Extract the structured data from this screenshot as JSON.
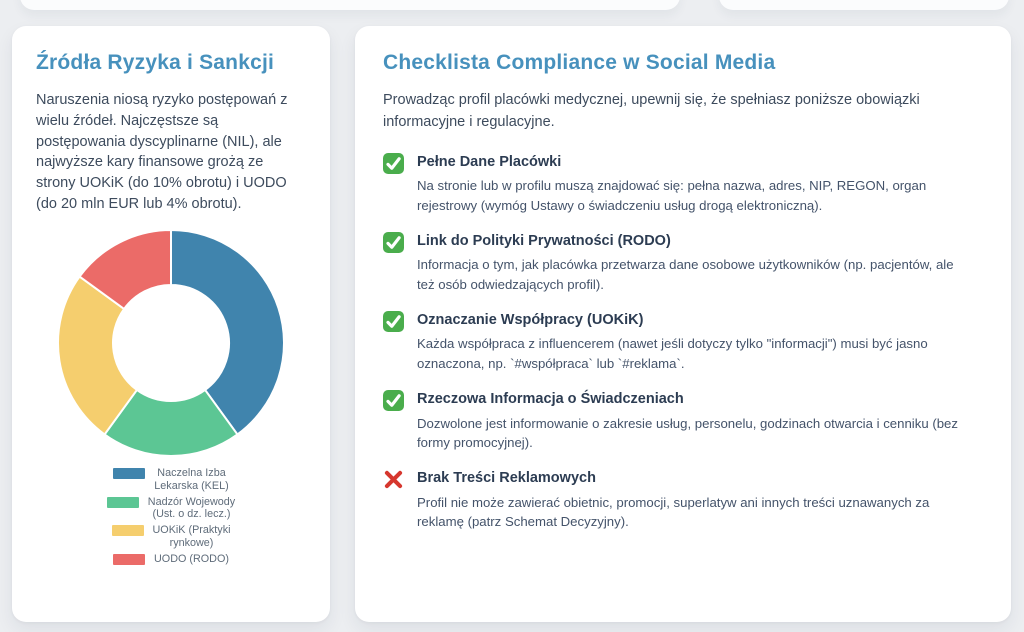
{
  "risk_card": {
    "title": "Źródła Ryzyka i Sankcji",
    "description": "Naruszenia niosą ryzyko postępowań z wielu źródeł. Najczęstsze są postępowania dyscyplinarne (NIL), ale najwyższe kary finansowe grożą ze strony UOKiK (do 10% obrotu) i UODO (do 20 mln EUR lub 4% obrotu)."
  },
  "chart_data": {
    "type": "pie",
    "subtype": "donut",
    "title": "",
    "categories": [
      "Naczelna Izba Lekarska (KEL)",
      "Nadzór Wojewody (Ust. o dz. lecz.)",
      "UOKiK (Praktyki rynkowe)",
      "UODO (RODO)"
    ],
    "values": [
      40,
      20,
      25,
      15
    ],
    "colors": [
      "#4084ad",
      "#5cc694",
      "#f5ce6e",
      "#eb6b68"
    ],
    "legend_lines": [
      [
        "Naczelna Izba",
        "Lekarska (KEL)"
      ],
      [
        "Nadzór Wojewody",
        "(Ust. o dz. lecz.)"
      ],
      [
        "UOKiK (Praktyki",
        "rynkowe)"
      ],
      [
        "UODO (RODO)"
      ]
    ],
    "legend_position": "bottom",
    "cutout_percent": 50,
    "start_angle_deg": 0,
    "direction": "clockwise"
  },
  "checklist_card": {
    "title": "Checklista Compliance w Social Media",
    "intro": "Prowadząc profil placówki medycznej, upewnij się, że spełniasz poniższe obowiązki informacyjne i regulacyjne.",
    "items": [
      {
        "status": "pass",
        "title": "Pełne Dane Placówki",
        "description": "Na stronie lub w profilu muszą znajdować się: pełna nazwa, adres, NIP, REGON, organ rejestrowy (wymóg Ustawy o świadczeniu usług drogą elektroniczną)."
      },
      {
        "status": "pass",
        "title": "Link do Polityki Prywatności (RODO)",
        "description": "Informacja o tym, jak placówka przetwarza dane osobowe użytkowników (np. pacjentów, ale też osób odwiedzających profil)."
      },
      {
        "status": "pass",
        "title": "Oznaczanie Współpracy (UOKiK)",
        "description": "Każda współpraca z influencerem (nawet jeśli dotyczy tylko \"informacji\") musi być jasno oznaczona, np. `#współpraca` lub `#reklama`."
      },
      {
        "status": "pass",
        "title": "Rzeczowa Informacja o Świadczeniach",
        "description": "Dozwolone jest informowanie o zakresie usług, personelu, godzinach otwarcia i cenniku (bez formy promocyjnej)."
      },
      {
        "status": "fail",
        "title": "Brak Treści Reklamowych",
        "description": "Profil nie może zawierać obietnic, promocji, superlatyw ani innych treści uznawanych za reklamę (patrz Schemat Decyzyjny)."
      }
    ]
  },
  "colors": {
    "title_accent": "#4791bd",
    "pass_icon_bg": "#4aad4c",
    "fail_icon": "#d6372e",
    "page_background": "#eceef1",
    "card_background": "#ffffff"
  }
}
